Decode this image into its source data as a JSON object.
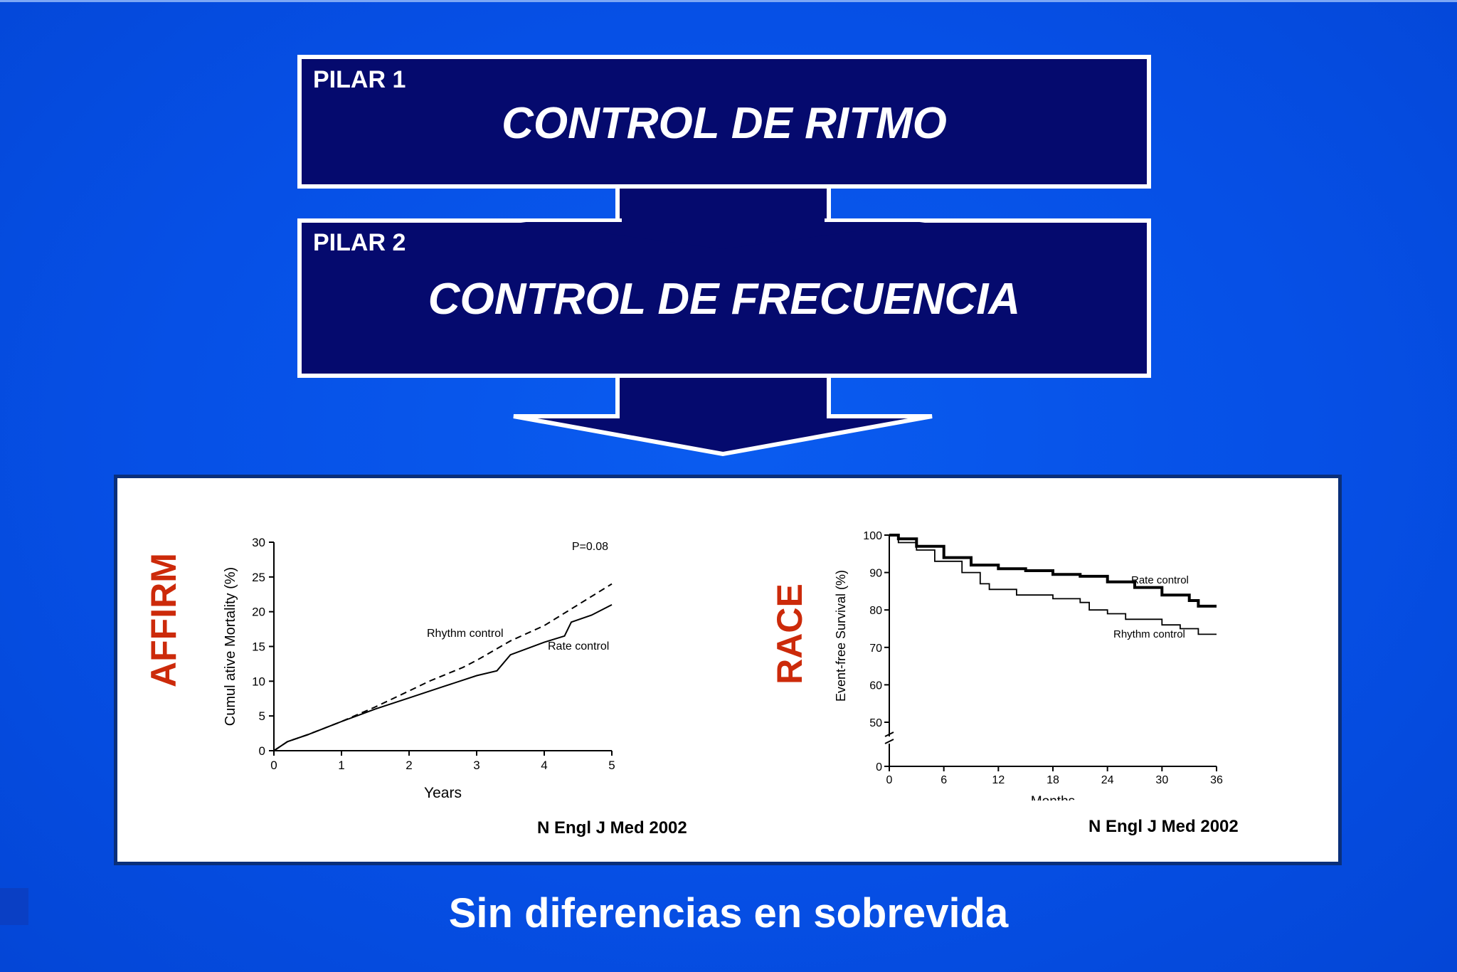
{
  "pillar1": {
    "tag": "PILAR 1",
    "title": "CONTROL DE RITMO"
  },
  "pillar2": {
    "tag": "PILAR 2",
    "title": "CONTROL DE FRECUENCIA"
  },
  "conclusion": "Sin diferencias en sobrevida",
  "colors": {
    "box_fill": "#050a6e",
    "study_label": "#cc2a0a"
  },
  "chart_data": [
    {
      "type": "line",
      "study_label": "AFFIRM",
      "reference": "N Engl J Med 2002",
      "xlabel": "Years",
      "ylabel": "Cumul ative Mortality (%)",
      "annotation": "P=0.08",
      "xlim": [
        0,
        5
      ],
      "ylim": [
        0,
        30
      ],
      "xticks": [
        0,
        1,
        2,
        3,
        4,
        5
      ],
      "yticks": [
        0,
        5,
        10,
        15,
        20,
        25,
        30
      ],
      "series": [
        {
          "name": "Rhythm control",
          "dash": true,
          "points": [
            [
              0,
              0
            ],
            [
              0.2,
              1.3
            ],
            [
              0.5,
              2.3
            ],
            [
              1,
              4.2
            ],
            [
              1.5,
              6.3
            ],
            [
              2,
              8.6
            ],
            [
              2.3,
              10
            ],
            [
              2.8,
              12
            ],
            [
              3,
              13
            ],
            [
              3.5,
              15.8
            ],
            [
              4,
              18
            ],
            [
              4.5,
              21
            ],
            [
              5,
              24
            ]
          ]
        },
        {
          "name": "Rate control",
          "dash": false,
          "points": [
            [
              0,
              0
            ],
            [
              0.2,
              1.3
            ],
            [
              0.5,
              2.3
            ],
            [
              1,
              4.2
            ],
            [
              1.5,
              6
            ],
            [
              2,
              7.6
            ],
            [
              2.5,
              9.2
            ],
            [
              3,
              10.8
            ],
            [
              3.3,
              11.5
            ],
            [
              3.5,
              13.8
            ],
            [
              4,
              15.6
            ],
            [
              4.3,
              16.5
            ],
            [
              4.4,
              18.5
            ],
            [
              4.7,
              19.5
            ],
            [
              5,
              21
            ]
          ]
        }
      ]
    },
    {
      "type": "line",
      "study_label": "RACE",
      "reference": "N Engl J Med 2002",
      "xlabel": "Months",
      "ylabel": "Event-free Survival (%)",
      "xlim": [
        0,
        36
      ],
      "ylim": [
        50,
        100
      ],
      "xticks": [
        0,
        6,
        12,
        18,
        24,
        30,
        36
      ],
      "yticks": [
        0,
        50,
        60,
        70,
        80,
        90,
        100
      ],
      "axis_break": true,
      "series": [
        {
          "name": "Rate control",
          "bold": true,
          "points": [
            [
              0,
              100
            ],
            [
              1,
              99
            ],
            [
              3,
              97
            ],
            [
              6,
              94
            ],
            [
              9,
              92
            ],
            [
              12,
              91
            ],
            [
              15,
              90.5
            ],
            [
              18,
              89.5
            ],
            [
              21,
              89
            ],
            [
              24,
              87.5
            ],
            [
              27,
              86
            ],
            [
              30,
              84
            ],
            [
              33,
              82.5
            ],
            [
              34,
              81
            ],
            [
              36,
              81
            ]
          ]
        },
        {
          "name": "Rhythm control",
          "bold": false,
          "points": [
            [
              0,
              100
            ],
            [
              1,
              98
            ],
            [
              3,
              96
            ],
            [
              5,
              93
            ],
            [
              8,
              90
            ],
            [
              10,
              87
            ],
            [
              11,
              85.5
            ],
            [
              14,
              84
            ],
            [
              18,
              83
            ],
            [
              21,
              82
            ],
            [
              22,
              80
            ],
            [
              24,
              79
            ],
            [
              26,
              77.5
            ],
            [
              30,
              76
            ],
            [
              32,
              75
            ],
            [
              34,
              73.5
            ],
            [
              36,
              73.5
            ]
          ]
        }
      ]
    }
  ]
}
